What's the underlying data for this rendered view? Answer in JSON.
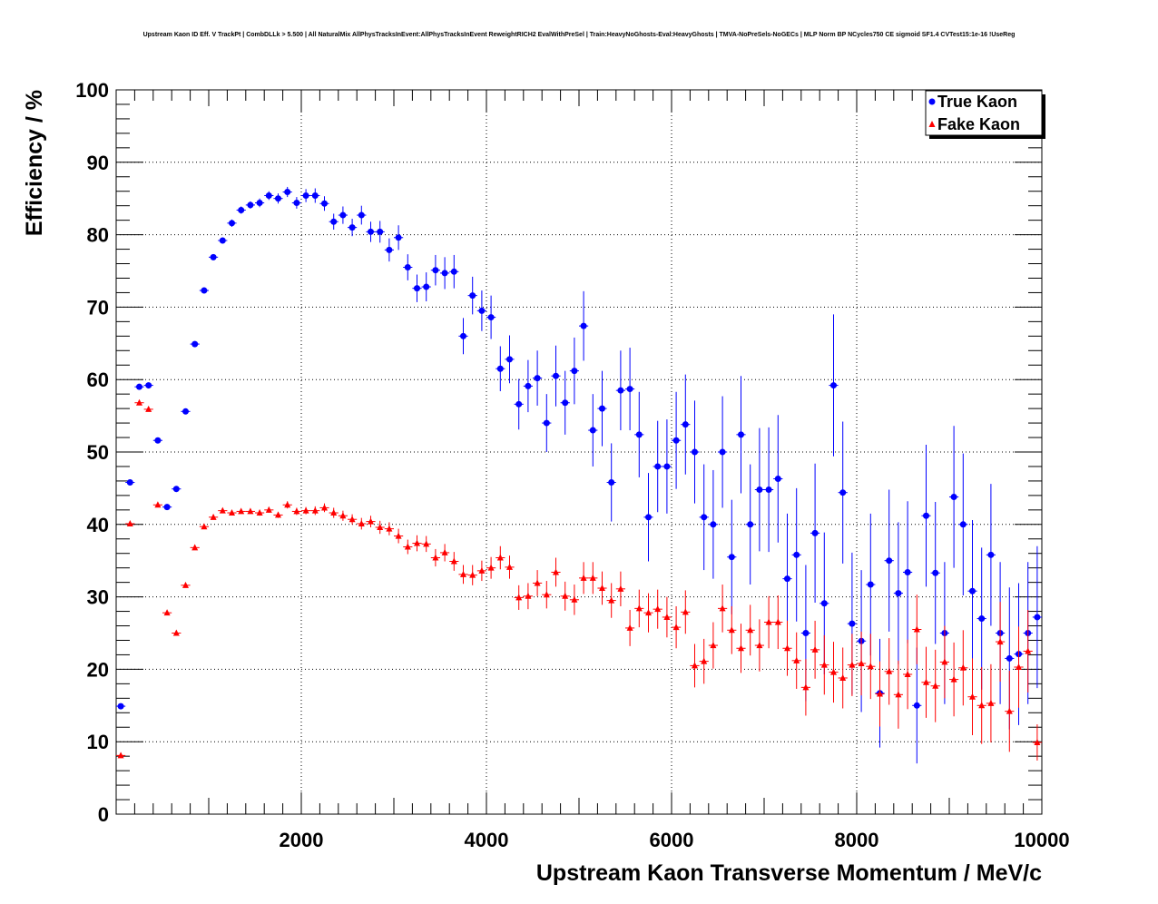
{
  "chart_data": {
    "type": "scatter",
    "title": "Upstream Kaon ID Eff. V TrackPt | CombDLLk > 5.500 | All NaturalMix AllPhysTracksInEvent:AllPhysTracksInEvent ReweightRICH2 EvalWithPreSel | Train:HeavyNoGhosts-Eval:HeavyGhosts | TMVA-NoPreSels-NoGECs | MLP Norm BP NCycles750 CE sigmoid SF1.4 CVTest15:1e-16 !UseReg",
    "xlabel": "Upstream Kaon Transverse Momentum / MeV/c",
    "ylabel": "Efficiency / %",
    "xlim": [
      0,
      10000
    ],
    "ylim": [
      0,
      100
    ],
    "x_ticks": [
      "2000",
      "4000",
      "6000",
      "8000",
      "10000"
    ],
    "y_ticks": [
      "0",
      "10",
      "20",
      "30",
      "40",
      "50",
      "60",
      "70",
      "80",
      "90",
      "100"
    ],
    "grid": true,
    "legend_position": "top-right",
    "bin_width": 100,
    "x": [
      50,
      150,
      250,
      350,
      450,
      550,
      650,
      750,
      850,
      950,
      1050,
      1150,
      1250,
      1350,
      1450,
      1550,
      1650,
      1750,
      1850,
      1950,
      2050,
      2150,
      2250,
      2350,
      2450,
      2550,
      2650,
      2750,
      2850,
      2950,
      3050,
      3150,
      3250,
      3350,
      3450,
      3550,
      3650,
      3750,
      3850,
      3950,
      4050,
      4150,
      4250,
      4350,
      4450,
      4550,
      4650,
      4750,
      4850,
      4950,
      5050,
      5150,
      5250,
      5350,
      5450,
      5550,
      5650,
      5750,
      5850,
      5950,
      6050,
      6150,
      6250,
      6350,
      6450,
      6550,
      6650,
      6750,
      6850,
      6950,
      7050,
      7150,
      7250,
      7350,
      7450,
      7550,
      7650,
      7750,
      7850,
      7950,
      8050,
      8150,
      8250,
      8350,
      8450,
      8550,
      8650,
      8750,
      8850,
      8950,
      9050,
      9150,
      9250,
      9350,
      9450,
      9550,
      9650,
      9750,
      9850,
      9950
    ],
    "series": [
      {
        "name": "True Kaon",
        "color": "#0000ff",
        "marker": "circle",
        "values": [
          14.9,
          45.8,
          59.0,
          59.2,
          51.6,
          42.4,
          44.9,
          55.6,
          64.9,
          72.3,
          76.9,
          79.2,
          81.6,
          83.4,
          84.1,
          84.4,
          85.4,
          85.0,
          85.9,
          84.4,
          85.4,
          85.4,
          84.3,
          81.8,
          82.7,
          81.0,
          82.7,
          80.4,
          80.4,
          77.9,
          79.6,
          75.5,
          72.6,
          72.8,
          75.1,
          74.7,
          74.9,
          66.0,
          71.6,
          69.5,
          68.6,
          61.5,
          62.8,
          56.6,
          59.1,
          60.2,
          54.0,
          60.5,
          56.8,
          61.2,
          67.4,
          53.0,
          56.0,
          45.8,
          58.5,
          58.7,
          52.4,
          41.0,
          48.0,
          48.0,
          51.6,
          53.8,
          50.0,
          41.0,
          40.0,
          50.0,
          35.5,
          52.4,
          40.0,
          44.8,
          44.8,
          46.3,
          32.5,
          35.8,
          25.0,
          38.8,
          29.1,
          59.2,
          44.4,
          26.3,
          23.9,
          31.7,
          16.7,
          35.0,
          30.5,
          33.4,
          15.0,
          41.2,
          33.3,
          25.0,
          43.8,
          40.0,
          30.8,
          27.0,
          35.8,
          25.0,
          21.5,
          22.1,
          25.0,
          27.2
        ],
        "errors": [
          0.3,
          0.4,
          0.4,
          0.4,
          0.4,
          0.4,
          0.4,
          0.4,
          0.4,
          0.4,
          0.4,
          0.4,
          0.5,
          0.5,
          0.5,
          0.6,
          0.6,
          0.7,
          0.7,
          0.8,
          0.9,
          1.0,
          1.0,
          1.1,
          1.2,
          1.2,
          1.3,
          1.4,
          1.5,
          1.6,
          1.7,
          1.8,
          1.9,
          2.0,
          2.1,
          2.2,
          2.3,
          2.5,
          2.6,
          2.8,
          3.0,
          3.1,
          3.3,
          3.5,
          3.6,
          3.8,
          4.0,
          4.2,
          4.4,
          4.6,
          4.8,
          5.0,
          5.2,
          5.4,
          5.5,
          5.7,
          5.9,
          6.1,
          6.3,
          6.5,
          6.7,
          6.9,
          7.1,
          7.3,
          7.5,
          7.7,
          7.9,
          8.1,
          8.3,
          8.5,
          8.6,
          8.8,
          9.0,
          9.2,
          9.4,
          9.6,
          9.8,
          9.8,
          9.8,
          9.8,
          9.8,
          9.8,
          7.5,
          9.8,
          9.8,
          9.8,
          8.0,
          9.8,
          9.8,
          9.8,
          9.8,
          9.8,
          9.8,
          9.8,
          9.8,
          9.8,
          9.8,
          9.8,
          9.8,
          9.8
        ]
      },
      {
        "name": "Fake Kaon",
        "color": "#ff0000",
        "marker": "triangle",
        "values": [
          8.1,
          40.1,
          56.8,
          55.9,
          42.7,
          27.8,
          25.0,
          31.6,
          36.8,
          39.7,
          41.0,
          41.9,
          41.6,
          41.8,
          41.8,
          41.6,
          42.0,
          41.3,
          42.7,
          41.8,
          41.9,
          41.9,
          42.3,
          41.6,
          41.2,
          40.7,
          40.1,
          40.4,
          39.6,
          39.4,
          38.4,
          36.9,
          37.4,
          37.3,
          35.4,
          36.1,
          34.9,
          33.1,
          33.0,
          33.6,
          34.0,
          35.4,
          34.1,
          29.9,
          30.1,
          31.9,
          30.3,
          33.4,
          30.1,
          29.6,
          32.6,
          32.6,
          31.2,
          29.5,
          31.1,
          25.7,
          28.4,
          27.8,
          28.3,
          27.2,
          25.8,
          27.9,
          20.5,
          21.1,
          23.3,
          28.4,
          25.4,
          22.9,
          25.4,
          23.3,
          26.5,
          26.5,
          22.9,
          21.2,
          17.5,
          22.7,
          20.6,
          19.6,
          18.8,
          20.6,
          20.8,
          20.4,
          16.6,
          19.7,
          16.5,
          19.3,
          25.5,
          18.2,
          17.7,
          21.0,
          18.6,
          20.2,
          16.2,
          15.0,
          15.3,
          23.8,
          14.2,
          20.3,
          22.5,
          9.9
        ],
        "errors": [
          0.2,
          0.3,
          0.3,
          0.3,
          0.3,
          0.3,
          0.3,
          0.3,
          0.3,
          0.3,
          0.3,
          0.3,
          0.3,
          0.3,
          0.3,
          0.4,
          0.4,
          0.4,
          0.5,
          0.5,
          0.5,
          0.6,
          0.6,
          0.7,
          0.7,
          0.7,
          0.8,
          0.8,
          0.9,
          0.9,
          1.0,
          1.0,
          1.1,
          1.1,
          1.2,
          1.2,
          1.3,
          1.3,
          1.4,
          1.4,
          1.5,
          1.6,
          1.6,
          1.7,
          1.8,
          1.8,
          1.9,
          2.0,
          2.0,
          2.1,
          2.2,
          2.2,
          2.3,
          2.4,
          2.4,
          2.5,
          2.6,
          2.7,
          2.7,
          2.8,
          2.9,
          3.0,
          3.0,
          3.1,
          3.2,
          3.3,
          3.3,
          3.4,
          3.5,
          3.6,
          3.6,
          3.7,
          3.8,
          3.9,
          3.9,
          4.0,
          4.1,
          4.2,
          4.2,
          4.3,
          4.4,
          4.5,
          4.5,
          4.6,
          4.7,
          4.8,
          4.8,
          4.9,
          5.0,
          5.0,
          5.1,
          5.2,
          5.3,
          5.3,
          5.4,
          5.5,
          5.6,
          5.6,
          5.7,
          2.5
        ]
      }
    ]
  }
}
